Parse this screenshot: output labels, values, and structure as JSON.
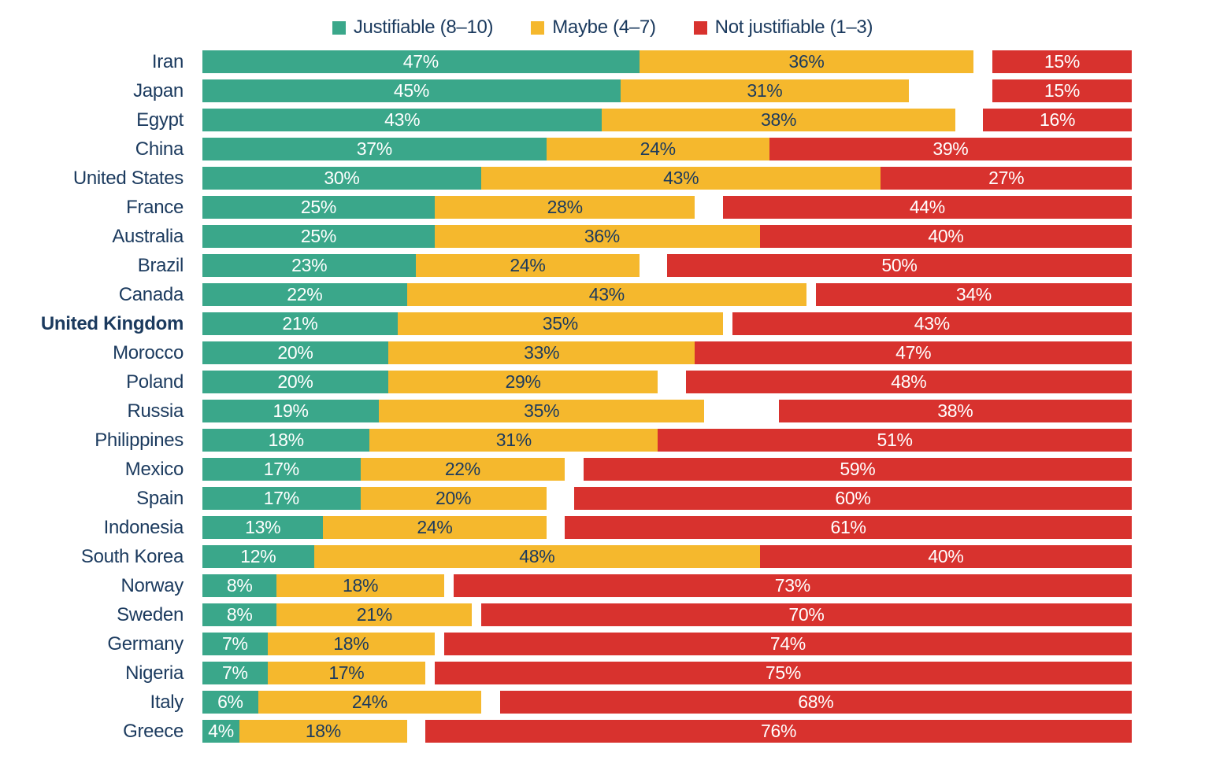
{
  "legend": [
    {
      "label": "Justifiable (8–10)",
      "color": "#3AA78A"
    },
    {
      "label": "Maybe (4–7)",
      "color": "#F5B82D"
    },
    {
      "label": "Not justifiable (1–3)",
      "color": "#D8322E"
    }
  ],
  "colors": {
    "label_text": "#1B3A5E",
    "background": "#FFFFFF",
    "justifiable": "#3AA78A",
    "maybe": "#F5B82D",
    "not_justifiable": "#D8322E"
  },
  "chart_data": {
    "type": "bar",
    "variant": "horizontal-stacked",
    "unit": "%",
    "axis_max": 100,
    "grid": false,
    "legend_position": "top-center",
    "highlighted_category": "United Kingdom",
    "layout_note": "Justifiable and Maybe segments are left-aligned and adjacent; Not justifiable segment is right-aligned to the 100% edge; any remainder appears as a white gap between Maybe and Not justifiable.",
    "categories": [
      "Iran",
      "Japan",
      "Egypt",
      "China",
      "United States",
      "France",
      "Australia",
      "Brazil",
      "Canada",
      "United Kingdom",
      "Morocco",
      "Poland",
      "Russia",
      "Philippines",
      "Mexico",
      "Spain",
      "Indonesia",
      "South Korea",
      "Norway",
      "Sweden",
      "Germany",
      "Nigeria",
      "Italy",
      "Greece"
    ],
    "series": [
      {
        "name": "Justifiable (8–10)",
        "color": "#3AA78A",
        "label_color": "#FFFFFF",
        "values": [
          47,
          45,
          43,
          37,
          30,
          25,
          25,
          23,
          22,
          21,
          20,
          20,
          19,
          18,
          17,
          17,
          13,
          12,
          8,
          8,
          7,
          7,
          6,
          4
        ]
      },
      {
        "name": "Maybe (4–7)",
        "color": "#F5B82D",
        "label_color": "#1B3A5E",
        "values": [
          36,
          31,
          38,
          24,
          43,
          28,
          36,
          24,
          43,
          35,
          33,
          29,
          35,
          31,
          22,
          20,
          24,
          48,
          18,
          21,
          18,
          17,
          24,
          18
        ]
      },
      {
        "name": "Not justifiable (1–3)",
        "color": "#D8322E",
        "label_color": "#FFFFFF",
        "values": [
          15,
          15,
          16,
          39,
          27,
          44,
          40,
          50,
          34,
          43,
          47,
          48,
          38,
          51,
          59,
          60,
          61,
          40,
          73,
          70,
          74,
          75,
          68,
          76
        ]
      }
    ]
  }
}
